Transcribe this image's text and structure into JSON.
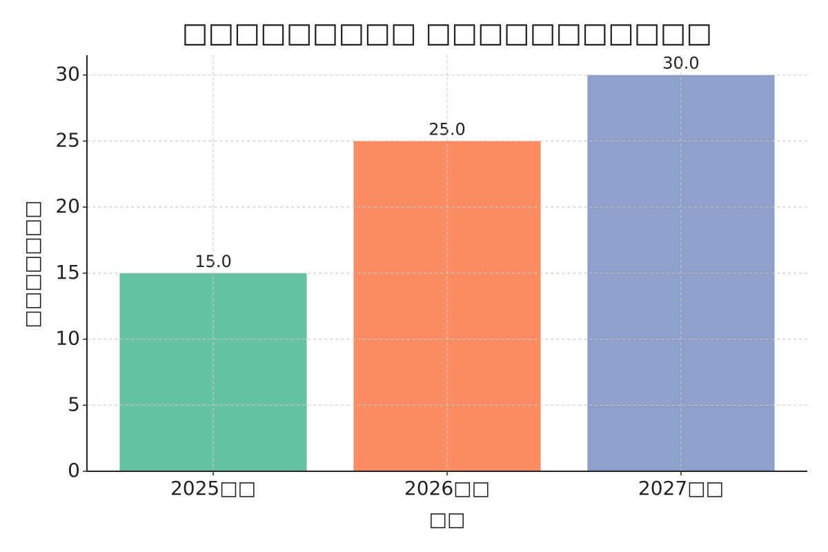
{
  "chart_data": {
    "type": "bar",
    "title": "□□□□□□□□□ □□□□□□□□□□□",
    "x_label": "□□",
    "y_label": "□□□□□□□",
    "categories": [
      "2025□□",
      "2026□□",
      "2027□□"
    ],
    "values": [
      15,
      25,
      30
    ],
    "value_labels": [
      "15.0",
      "25.0",
      "30.0"
    ],
    "colors": [
      "#66c2a5",
      "#fc8d62",
      "#8da0cb"
    ],
    "ylim": [
      0,
      31.5
    ],
    "yticks": [
      0,
      5,
      10,
      15,
      20,
      25,
      30
    ],
    "grid": true
  }
}
